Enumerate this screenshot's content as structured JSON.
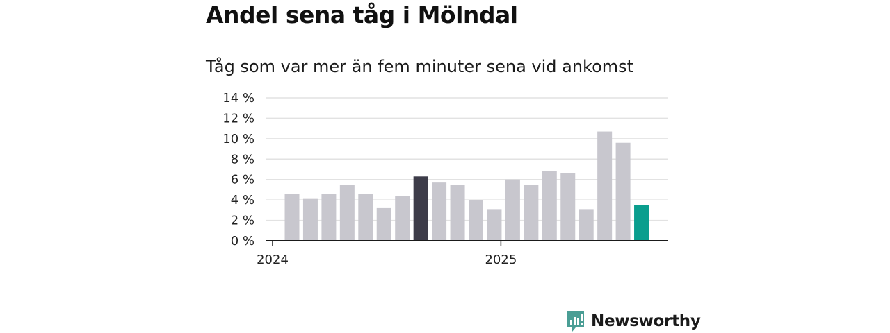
{
  "header": {
    "title": "Andel sena tåg i Mölndal",
    "subtitle": "Tåg som var mer än fem minuter sena vid ankomst"
  },
  "brand": {
    "name": "Newsworthy",
    "icon": "bar-chart-speech-bubble-icon"
  },
  "colors": {
    "default_bar": "#c8c7ce",
    "highlight_bar": "#3d3c49",
    "latest_bar": "#0a9e8e",
    "gridline": "#e2e2e2",
    "axis": "#1a1a1a",
    "brand": "#4a9e95"
  },
  "chart_data": {
    "type": "bar",
    "title": "Andel sena tåg i Mölndal",
    "subtitle": "Tåg som var mer än fem minuter sena vid ankomst",
    "y_ticks": [
      "0 %",
      "2 %",
      "4 %",
      "6 %",
      "8 %",
      "10 %",
      "12 %",
      "14 %"
    ],
    "ylim": [
      0,
      14
    ],
    "unit": "%",
    "grid": true,
    "x_tick_labels": [
      {
        "label": "2024",
        "index": 0
      },
      {
        "label": "2025",
        "index": 12
      }
    ],
    "values": [
      4.6,
      4.1,
      4.6,
      5.5,
      4.6,
      3.2,
      4.4,
      6.3,
      5.7,
      5.5,
      4.0,
      3.1,
      6.0,
      5.5,
      6.8,
      6.6,
      3.1,
      10.7,
      9.6,
      3.5
    ],
    "highlight_index": 7,
    "latest_index": 19
  }
}
